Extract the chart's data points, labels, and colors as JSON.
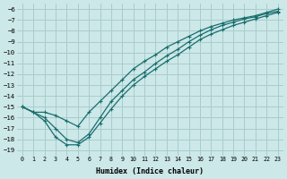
{
  "xlabel": "Humidex (Indice chaleur)",
  "bg_color": "#cce8e8",
  "grid_color": "#aacccc",
  "line_color": "#1a6e6e",
  "xlim": [
    -0.5,
    23.5
  ],
  "ylim": [
    -19.5,
    -5.5
  ],
  "xticks": [
    0,
    1,
    2,
    3,
    4,
    5,
    6,
    7,
    8,
    9,
    10,
    11,
    12,
    13,
    14,
    15,
    16,
    17,
    18,
    19,
    20,
    21,
    22,
    23
  ],
  "yticks": [
    -6,
    -7,
    -8,
    -9,
    -10,
    -11,
    -12,
    -13,
    -14,
    -15,
    -16,
    -17,
    -18,
    -19
  ],
  "x": [
    0,
    1,
    2,
    3,
    4,
    5,
    6,
    7,
    8,
    9,
    10,
    11,
    12,
    13,
    14,
    15,
    16,
    17,
    18,
    19,
    20,
    21,
    22,
    23
  ],
  "y_line1": [
    -15.0,
    -15.5,
    -16.3,
    -17.8,
    -18.5,
    -18.5,
    -17.8,
    -16.5,
    -15.2,
    -14.0,
    -13.0,
    -12.2,
    -11.5,
    -10.8,
    -10.2,
    -9.5,
    -8.8,
    -8.3,
    -7.9,
    -7.5,
    -7.2,
    -6.9,
    -6.6,
    -6.3
  ],
  "y_line2": [
    -15.0,
    -15.5,
    -16.0,
    -17.0,
    -18.0,
    -18.3,
    -17.5,
    -16.0,
    -14.5,
    -13.5,
    -12.5,
    -11.8,
    -11.0,
    -10.3,
    -9.7,
    -9.0,
    -8.4,
    -7.9,
    -7.5,
    -7.2,
    -6.9,
    -6.7,
    -6.4,
    -6.2
  ],
  "y_line3": [
    -15.0,
    -15.5,
    -15.5,
    -15.8,
    -16.3,
    -16.8,
    -15.5,
    -14.5,
    -13.5,
    -12.5,
    -11.5,
    -10.8,
    -10.2,
    -9.5,
    -9.0,
    -8.5,
    -8.0,
    -7.6,
    -7.3,
    -7.0,
    -6.8,
    -6.6,
    -6.3,
    -6.0
  ]
}
